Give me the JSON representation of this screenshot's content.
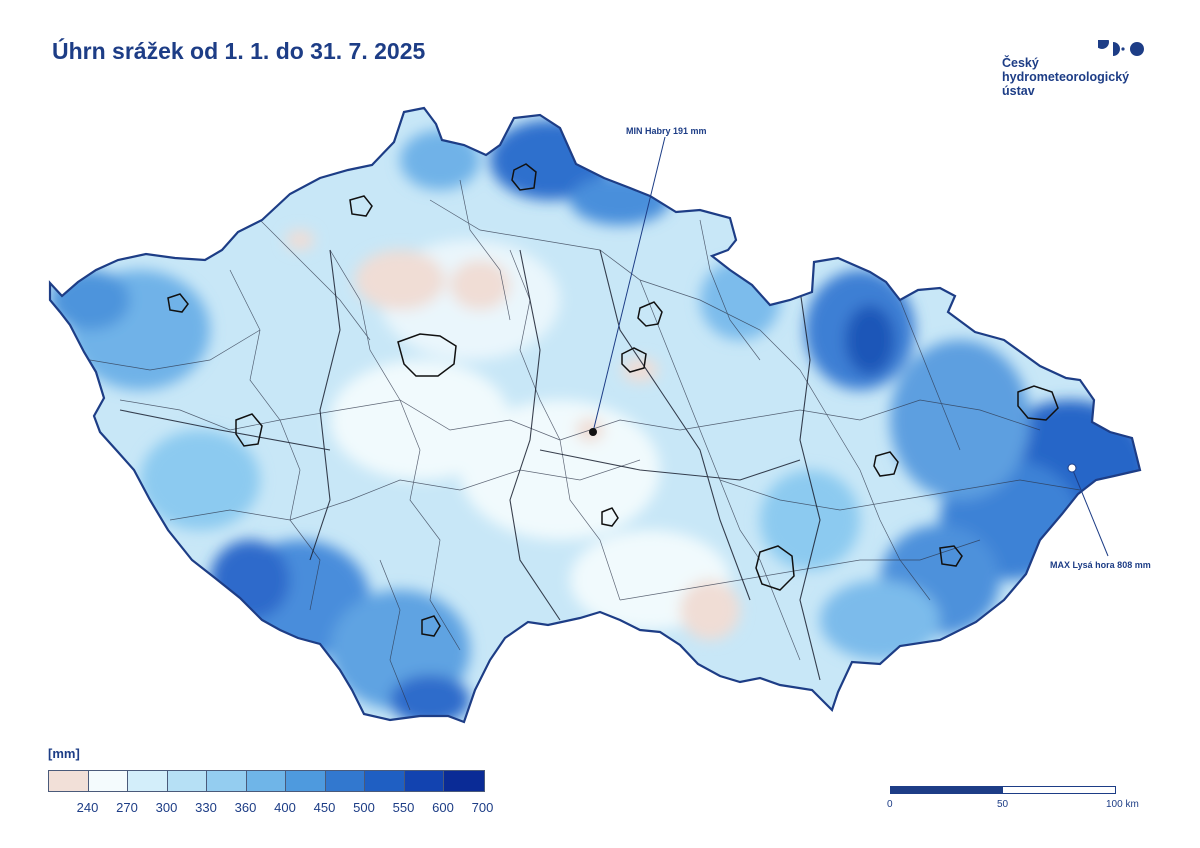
{
  "title": "Úhrn srážek od 1. 1. do 31. 7. 2025",
  "logo": {
    "lines": [
      "Český",
      "hydrometeorologický",
      "ústav"
    ],
    "color": "#1d3d86"
  },
  "map": {
    "min_label": "MIN Habry 191 mm",
    "max_label": "MAX Lysá hora 808 mm"
  },
  "legend": {
    "unit": "[mm]",
    "colors": [
      "#f2e0d8",
      "#f4fbfd",
      "#d3eefa",
      "#b6e0f5",
      "#94cdf0",
      "#6fb5e8",
      "#4e9ade",
      "#3278cf",
      "#1f5fc3",
      "#1243b0",
      "#0a2b96"
    ],
    "labels": [
      "240",
      "270",
      "300",
      "330",
      "360",
      "400",
      "450",
      "500",
      "550",
      "600",
      "700"
    ]
  },
  "scale_bar": {
    "labels": [
      "0",
      "50",
      "100 km"
    ]
  }
}
